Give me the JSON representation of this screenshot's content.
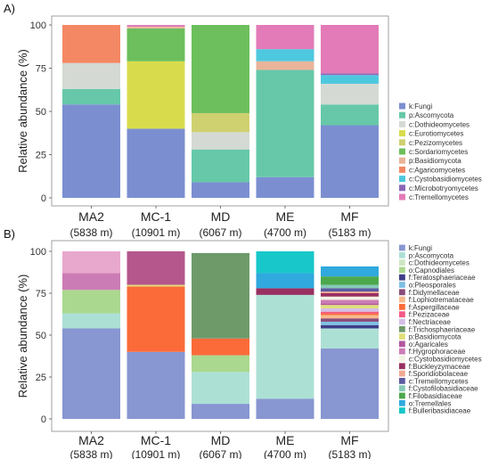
{
  "chart_data": [
    {
      "type": "bar",
      "stacked": true,
      "panel_label": "A)",
      "ylabel": "Relative abundance (%)",
      "ylim": [
        0,
        100
      ],
      "yticks": [
        "0",
        "25",
        "50",
        "75",
        "100"
      ],
      "categories": [
        "MA2",
        "MC-1",
        "MD",
        "ME",
        "MF"
      ],
      "category_sublabels": [
        "(5838 m)",
        "(10901 m)",
        "(6067 m)",
        "(4700 m)",
        "(5183 m)"
      ],
      "legend_position": "right",
      "series": [
        {
          "name": "k:Fungi",
          "color": "#7b8fd0",
          "values": [
            54,
            40,
            9,
            12,
            42
          ]
        },
        {
          "name": "p:Ascomycota",
          "color": "#66c8a9",
          "values": [
            9,
            0,
            19,
            62,
            12
          ]
        },
        {
          "name": "c:Dothideomycetes",
          "color": "#d4dad3",
          "values": [
            15,
            0,
            10,
            0,
            12
          ]
        },
        {
          "name": "c:Eurotiomycetes",
          "color": "#d8dc4c",
          "values": [
            0,
            39,
            0,
            0,
            0
          ]
        },
        {
          "name": "c:Pezizomycetes",
          "color": "#cfd06f",
          "values": [
            0,
            0,
            11,
            0,
            0
          ]
        },
        {
          "name": "c:Sordariomycetes",
          "color": "#6cbf5c",
          "values": [
            0,
            19,
            51,
            0,
            0
          ]
        },
        {
          "name": "p:Basidiomycota",
          "color": "#eab49a",
          "values": [
            0,
            1,
            0,
            5,
            0
          ]
        },
        {
          "name": "c:Agaricomycetes",
          "color": "#f48864",
          "values": [
            22,
            0,
            0,
            0,
            0
          ]
        },
        {
          "name": "c:Cystobasidiomycetes",
          "color": "#4ec8df",
          "values": [
            0,
            0,
            0,
            7,
            5
          ]
        },
        {
          "name": "c:Microbotryomycetes",
          "color": "#8c67b8",
          "values": [
            0,
            0,
            0,
            0,
            1
          ]
        },
        {
          "name": "c:Tremellomycetes",
          "color": "#e27bb7",
          "values": [
            0,
            1,
            0,
            14,
            28
          ]
        }
      ]
    },
    {
      "type": "bar",
      "stacked": true,
      "panel_label": "B)",
      "ylabel": "Relative abundance (%)",
      "ylim": [
        0,
        100
      ],
      "yticks": [
        "0",
        "25",
        "50",
        "75",
        "100"
      ],
      "categories": [
        "MA2",
        "MC-1",
        "MD",
        "ME",
        "MF"
      ],
      "category_sublabels": [
        "(5838 m)",
        "(10901 m)",
        "(6067 m)",
        "(4700 m)",
        "(5183 m)"
      ],
      "legend_position": "right",
      "series": [
        {
          "name": "k:Fungi",
          "color": "#8896d1",
          "values": [
            54,
            40,
            9,
            12,
            42
          ]
        },
        {
          "name": "p:Ascomycota",
          "color": "#ade0d5",
          "values": [
            9,
            0,
            19,
            62,
            12
          ]
        },
        {
          "name": "c:Dothideomycetes",
          "color": "#cfe7c4",
          "values": [
            0,
            0,
            0,
            0,
            0
          ]
        },
        {
          "name": "o:Capnodiales",
          "color": "#aad88e",
          "values": [
            14,
            0,
            10,
            0,
            0
          ]
        },
        {
          "name": "f:Teratosphaeriaceae",
          "color": "#3f3d87",
          "values": [
            0,
            0,
            0,
            0,
            2
          ]
        },
        {
          "name": "o:Pleosporales",
          "color": "#7fc0e4",
          "values": [
            0,
            0,
            0,
            0,
            2
          ]
        },
        {
          "name": "f:Didymellaceae",
          "color": "#8a4c7a",
          "values": [
            0,
            0,
            0,
            0,
            2
          ]
        },
        {
          "name": "f:Lophiotremataceae",
          "color": "#f7b98c",
          "values": [
            0,
            0,
            0,
            0,
            2
          ]
        },
        {
          "name": "f:Aspergillaceae",
          "color": "#fb6b3a",
          "values": [
            0,
            39,
            10,
            0,
            1
          ]
        },
        {
          "name": "f:Pezizaceae",
          "color": "#f25a87",
          "values": [
            0,
            0,
            0,
            0,
            1
          ]
        },
        {
          "name": "f:Nectriaceae",
          "color": "#d3bfe6",
          "values": [
            0,
            0,
            0,
            0,
            2
          ]
        },
        {
          "name": "f:Trichosphaeriaceae",
          "color": "#6e9a6a",
          "values": [
            0,
            0,
            51,
            0,
            0
          ]
        },
        {
          "name": "p:Basidiomycota",
          "color": "#e0df7a",
          "values": [
            0,
            1,
            0,
            0,
            2
          ]
        },
        {
          "name": "o:Agaricales",
          "color": "#b2569e",
          "values": [
            0,
            0,
            0,
            0,
            1
          ]
        },
        {
          "name": "f:Hygrophoraceae",
          "color": "#cc7cb5",
          "values": [
            10,
            0,
            0,
            0,
            2
          ]
        },
        {
          "name": "c:Cystobasidiomycetes",
          "color": "#f2f2e3",
          "values": [
            0,
            0,
            0,
            0,
            2
          ]
        },
        {
          "name": "f:Buckleyzymaceae",
          "color": "#993061",
          "values": [
            0,
            0,
            0,
            4,
            2
          ]
        },
        {
          "name": "f:Sporidiobolaceae",
          "color": "#f0a993",
          "values": [
            0,
            0,
            0,
            0,
            1
          ]
        },
        {
          "name": "c:Tremellomycetes",
          "color": "#5b5aa2",
          "values": [
            0,
            0,
            0,
            0,
            2
          ]
        },
        {
          "name": "f:Cystofilobasidiaceae",
          "color": "#86c9b6",
          "values": [
            0,
            0,
            0,
            0,
            2
          ]
        },
        {
          "name": "f:Filobasidiaceae",
          "color": "#4ca84c",
          "values": [
            0,
            0,
            0,
            0,
            5
          ]
        },
        {
          "name": "o:Tremellales",
          "color": "#2fa9de",
          "values": [
            0,
            0,
            0,
            9,
            6
          ]
        },
        {
          "name": "f:Bulleribasidiaceae",
          "color": "#18c7c9",
          "values": [
            0,
            0,
            0,
            13,
            0
          ]
        },
        {
          "name": "",
          "color": "#b5568c",
          "values": [
            0,
            20,
            0,
            0,
            0
          ]
        },
        {
          "name": "",
          "color": "#e8a8cd",
          "values": [
            13,
            0,
            0,
            0,
            0
          ]
        }
      ]
    }
  ]
}
